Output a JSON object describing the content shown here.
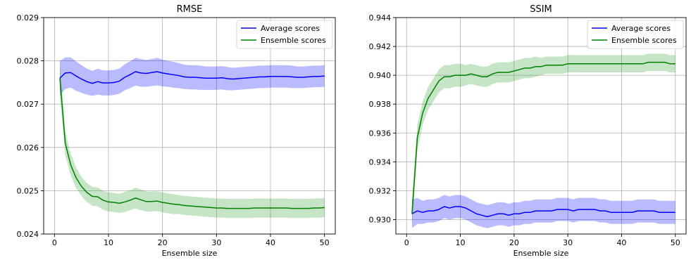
{
  "chart_data": [
    {
      "type": "line",
      "title": "RMSE",
      "xlabel": "Ensemble size",
      "ylabel": "",
      "xlim": [
        -2,
        52
      ],
      "ylim": [
        0.024,
        0.029
      ],
      "xticks": [
        0,
        10,
        20,
        30,
        40,
        50
      ],
      "yticks": [
        0.024,
        0.025,
        0.026,
        0.027,
        0.028,
        0.029
      ],
      "ytick_labels": [
        "0.024",
        "0.025",
        "0.026",
        "0.027",
        "0.028",
        "0.029"
      ],
      "grid": true,
      "legend_position": "top-right",
      "series": [
        {
          "name": "Average scores",
          "color": "#0000ff",
          "band_color": "#0000ff",
          "x": [
            1,
            2,
            3,
            4,
            5,
            6,
            7,
            8,
            9,
            10,
            11,
            12,
            13,
            14,
            15,
            16,
            17,
            18,
            19,
            20,
            21,
            22,
            23,
            24,
            25,
            26,
            27,
            28,
            29,
            30,
            31,
            32,
            33,
            34,
            35,
            36,
            37,
            38,
            39,
            40,
            41,
            42,
            43,
            44,
            45,
            46,
            47,
            48,
            49,
            50
          ],
          "y": [
            0.0276,
            0.02772,
            0.02773,
            0.02765,
            0.02758,
            0.02752,
            0.02748,
            0.02752,
            0.02749,
            0.02749,
            0.0275,
            0.02753,
            0.02762,
            0.02768,
            0.02775,
            0.02772,
            0.02771,
            0.02773,
            0.02775,
            0.02772,
            0.0277,
            0.02768,
            0.02766,
            0.02763,
            0.02762,
            0.02762,
            0.02761,
            0.0276,
            0.0276,
            0.0276,
            0.02761,
            0.02759,
            0.02758,
            0.02759,
            0.0276,
            0.02761,
            0.02762,
            0.02763,
            0.02763,
            0.02764,
            0.02764,
            0.02764,
            0.02764,
            0.02763,
            0.02762,
            0.02762,
            0.02763,
            0.02764,
            0.02764,
            0.02765
          ],
          "lower": [
            0.0272,
            0.02735,
            0.02738,
            0.02731,
            0.02726,
            0.02722,
            0.02719,
            0.02722,
            0.0272,
            0.0272,
            0.02721,
            0.02724,
            0.02732,
            0.02737,
            0.02743,
            0.0274,
            0.0274,
            0.02742,
            0.02743,
            0.02741,
            0.0274,
            0.02738,
            0.02737,
            0.02735,
            0.02734,
            0.02734,
            0.02733,
            0.02733,
            0.02733,
            0.02733,
            0.02734,
            0.02732,
            0.02732,
            0.02733,
            0.02734,
            0.02735,
            0.02736,
            0.02737,
            0.02737,
            0.02738,
            0.02738,
            0.02738,
            0.02738,
            0.02737,
            0.02737,
            0.02737,
            0.02738,
            0.02739,
            0.02739,
            0.0274
          ],
          "upper": [
            0.028,
            0.02808,
            0.02808,
            0.02799,
            0.0279,
            0.02782,
            0.02777,
            0.02782,
            0.02778,
            0.02778,
            0.02779,
            0.02782,
            0.02792,
            0.02799,
            0.02807,
            0.02804,
            0.02802,
            0.02804,
            0.02807,
            0.02803,
            0.028,
            0.02798,
            0.02795,
            0.02791,
            0.0279,
            0.0279,
            0.02789,
            0.02787,
            0.02787,
            0.02787,
            0.02788,
            0.02786,
            0.02784,
            0.02785,
            0.02786,
            0.02787,
            0.02788,
            0.02789,
            0.02789,
            0.0279,
            0.0279,
            0.0279,
            0.0279,
            0.02789,
            0.02787,
            0.02787,
            0.02788,
            0.02789,
            0.02789,
            0.0279
          ]
        },
        {
          "name": "Ensemble scores",
          "color": "#008000",
          "band_color": "#2ca02c",
          "x": [
            1,
            2,
            3,
            4,
            5,
            6,
            7,
            8,
            9,
            10,
            11,
            12,
            13,
            14,
            15,
            16,
            17,
            18,
            19,
            20,
            21,
            22,
            23,
            24,
            25,
            26,
            27,
            28,
            29,
            30,
            31,
            32,
            33,
            34,
            35,
            36,
            37,
            38,
            39,
            40,
            41,
            42,
            43,
            44,
            45,
            46,
            47,
            48,
            49,
            50
          ],
          "y": [
            0.0276,
            0.0261,
            0.0256,
            0.0253,
            0.0251,
            0.02496,
            0.02487,
            0.02486,
            0.02478,
            0.02474,
            0.02473,
            0.02471,
            0.02474,
            0.02478,
            0.02483,
            0.02479,
            0.02475,
            0.02475,
            0.02476,
            0.02473,
            0.02471,
            0.02469,
            0.02468,
            0.02466,
            0.02465,
            0.02464,
            0.02463,
            0.02462,
            0.02461,
            0.0246,
            0.0246,
            0.02459,
            0.02459,
            0.02459,
            0.02459,
            0.02459,
            0.0246,
            0.0246,
            0.0246,
            0.0246,
            0.0246,
            0.0246,
            0.0246,
            0.02459,
            0.02459,
            0.02459,
            0.02459,
            0.0246,
            0.0246,
            0.02461
          ],
          "lower": [
            0.0272,
            0.02582,
            0.02535,
            0.02506,
            0.02488,
            0.02474,
            0.02465,
            0.02464,
            0.02456,
            0.02452,
            0.02451,
            0.02449,
            0.02451,
            0.02455,
            0.02459,
            0.02455,
            0.02452,
            0.02452,
            0.02453,
            0.0245,
            0.02448,
            0.02446,
            0.02446,
            0.02444,
            0.02443,
            0.02442,
            0.02441,
            0.0244,
            0.02439,
            0.02438,
            0.02438,
            0.02437,
            0.02437,
            0.02437,
            0.02437,
            0.02437,
            0.02438,
            0.02438,
            0.02438,
            0.02438,
            0.02438,
            0.02438,
            0.02438,
            0.02437,
            0.02437,
            0.02437,
            0.02437,
            0.02438,
            0.02438,
            0.02439
          ],
          "upper": [
            0.028,
            0.02638,
            0.02585,
            0.02554,
            0.02532,
            0.02518,
            0.02509,
            0.02508,
            0.025,
            0.02496,
            0.02495,
            0.02493,
            0.02497,
            0.02501,
            0.02507,
            0.02503,
            0.02498,
            0.02498,
            0.02499,
            0.02496,
            0.02494,
            0.02492,
            0.0249,
            0.02488,
            0.02487,
            0.02486,
            0.02485,
            0.02484,
            0.02483,
            0.02482,
            0.02482,
            0.02481,
            0.02481,
            0.02481,
            0.02481,
            0.02481,
            0.02482,
            0.02482,
            0.02482,
            0.02482,
            0.02482,
            0.02482,
            0.02482,
            0.02481,
            0.02481,
            0.02481,
            0.02481,
            0.02482,
            0.02482,
            0.02483
          ]
        }
      ]
    },
    {
      "type": "line",
      "title": "SSIM",
      "xlabel": "Ensemble size",
      "ylabel": "",
      "xlim": [
        -2,
        52
      ],
      "ylim": [
        0.929,
        0.944
      ],
      "xticks": [
        0,
        10,
        20,
        30,
        40,
        50
      ],
      "yticks": [
        0.93,
        0.932,
        0.934,
        0.936,
        0.938,
        0.94,
        0.942,
        0.944
      ],
      "ytick_labels": [
        "0.930",
        "0.932",
        "0.934",
        "0.936",
        "0.938",
        "0.940",
        "0.942",
        "0.944"
      ],
      "grid": true,
      "legend_position": "top-right",
      "series": [
        {
          "name": "Average scores",
          "color": "#0000ff",
          "band_color": "#0000ff",
          "x": [
            1,
            2,
            3,
            4,
            5,
            6,
            7,
            8,
            9,
            10,
            11,
            12,
            13,
            14,
            15,
            16,
            17,
            18,
            19,
            20,
            21,
            22,
            23,
            24,
            25,
            26,
            27,
            28,
            29,
            30,
            31,
            32,
            33,
            34,
            35,
            36,
            37,
            38,
            39,
            40,
            41,
            42,
            43,
            44,
            45,
            46,
            47,
            48,
            49,
            50
          ],
          "y": [
            0.9304,
            0.9306,
            0.9305,
            0.9306,
            0.9306,
            0.9307,
            0.9309,
            0.9308,
            0.9309,
            0.9309,
            0.9308,
            0.9306,
            0.9304,
            0.9303,
            0.9302,
            0.9303,
            0.9304,
            0.9304,
            0.9303,
            0.9304,
            0.9304,
            0.9305,
            0.9305,
            0.9306,
            0.9306,
            0.9306,
            0.9306,
            0.9307,
            0.9307,
            0.9307,
            0.9306,
            0.9307,
            0.9307,
            0.9307,
            0.9307,
            0.9306,
            0.9306,
            0.9305,
            0.9305,
            0.9305,
            0.9305,
            0.9305,
            0.9306,
            0.9306,
            0.9306,
            0.9306,
            0.9305,
            0.9305,
            0.9305,
            0.9305
          ],
          "lower": [
            0.9294,
            0.9297,
            0.9297,
            0.9298,
            0.9298,
            0.9299,
            0.9301,
            0.93,
            0.9301,
            0.9301,
            0.93,
            0.9298,
            0.9296,
            0.9295,
            0.9294,
            0.9295,
            0.9296,
            0.9296,
            0.9295,
            0.9296,
            0.9296,
            0.9297,
            0.9297,
            0.9298,
            0.9298,
            0.9298,
            0.9298,
            0.9299,
            0.9299,
            0.9299,
            0.9298,
            0.9299,
            0.9299,
            0.9299,
            0.9299,
            0.9298,
            0.9298,
            0.9297,
            0.9297,
            0.9297,
            0.9297,
            0.9297,
            0.9298,
            0.9298,
            0.9298,
            0.9298,
            0.9297,
            0.9297,
            0.9297,
            0.9297
          ],
          "upper": [
            0.9314,
            0.9315,
            0.9313,
            0.9314,
            0.9314,
            0.9315,
            0.9317,
            0.9316,
            0.9317,
            0.9317,
            0.9316,
            0.9314,
            0.9312,
            0.9311,
            0.931,
            0.9311,
            0.9312,
            0.9312,
            0.9311,
            0.9312,
            0.9312,
            0.9313,
            0.9313,
            0.9314,
            0.9314,
            0.9314,
            0.9314,
            0.9315,
            0.9315,
            0.9315,
            0.9314,
            0.9315,
            0.9315,
            0.9315,
            0.9315,
            0.9314,
            0.9314,
            0.9313,
            0.9313,
            0.9313,
            0.9313,
            0.9313,
            0.9314,
            0.9314,
            0.9314,
            0.9314,
            0.9313,
            0.9313,
            0.9313,
            0.9313
          ]
        },
        {
          "name": "Ensemble scores",
          "color": "#008000",
          "band_color": "#2ca02c",
          "x": [
            1,
            2,
            3,
            4,
            5,
            6,
            7,
            8,
            9,
            10,
            11,
            12,
            13,
            14,
            15,
            16,
            17,
            18,
            19,
            20,
            21,
            22,
            23,
            24,
            25,
            26,
            27,
            28,
            29,
            30,
            31,
            32,
            33,
            34,
            35,
            36,
            37,
            38,
            39,
            40,
            41,
            42,
            43,
            44,
            45,
            46,
            47,
            48,
            49,
            50
          ],
          "y": [
            0.9304,
            0.9357,
            0.9374,
            0.9384,
            0.939,
            0.9396,
            0.9399,
            0.9399,
            0.94,
            0.94,
            0.94,
            0.9401,
            0.94,
            0.9399,
            0.9399,
            0.9401,
            0.9402,
            0.9402,
            0.9402,
            0.9403,
            0.9404,
            0.9405,
            0.9405,
            0.9406,
            0.9406,
            0.9407,
            0.9407,
            0.9407,
            0.9407,
            0.9408,
            0.9408,
            0.9408,
            0.9408,
            0.9408,
            0.9408,
            0.9408,
            0.9408,
            0.9408,
            0.9408,
            0.9408,
            0.9408,
            0.9408,
            0.9408,
            0.9408,
            0.9409,
            0.9409,
            0.9409,
            0.9409,
            0.9408,
            0.9408
          ],
          "lower": [
            0.9294,
            0.9348,
            0.9366,
            0.9376,
            0.9382,
            0.9388,
            0.9391,
            0.9391,
            0.9392,
            0.9392,
            0.9393,
            0.9394,
            0.9393,
            0.9392,
            0.9392,
            0.9394,
            0.9395,
            0.9395,
            0.9395,
            0.9396,
            0.9397,
            0.9398,
            0.9398,
            0.9399,
            0.94,
            0.9401,
            0.9401,
            0.9401,
            0.9401,
            0.9402,
            0.9402,
            0.9402,
            0.9402,
            0.9402,
            0.9402,
            0.9402,
            0.9402,
            0.9402,
            0.9402,
            0.9402,
            0.9402,
            0.9402,
            0.9402,
            0.9402,
            0.9403,
            0.9403,
            0.9403,
            0.9403,
            0.9402,
            0.9402
          ],
          "upper": [
            0.9314,
            0.9366,
            0.9382,
            0.9392,
            0.9398,
            0.9404,
            0.9407,
            0.9407,
            0.9408,
            0.9408,
            0.9407,
            0.9408,
            0.9407,
            0.9406,
            0.9406,
            0.9408,
            0.9409,
            0.9409,
            0.9409,
            0.941,
            0.9411,
            0.9412,
            0.9412,
            0.9413,
            0.9412,
            0.9413,
            0.9413,
            0.9413,
            0.9413,
            0.9414,
            0.9414,
            0.9414,
            0.9414,
            0.9414,
            0.9414,
            0.9414,
            0.9414,
            0.9414,
            0.9414,
            0.9414,
            0.9414,
            0.9414,
            0.9414,
            0.9414,
            0.9415,
            0.9415,
            0.9415,
            0.9415,
            0.9414,
            0.9414
          ]
        }
      ]
    }
  ]
}
